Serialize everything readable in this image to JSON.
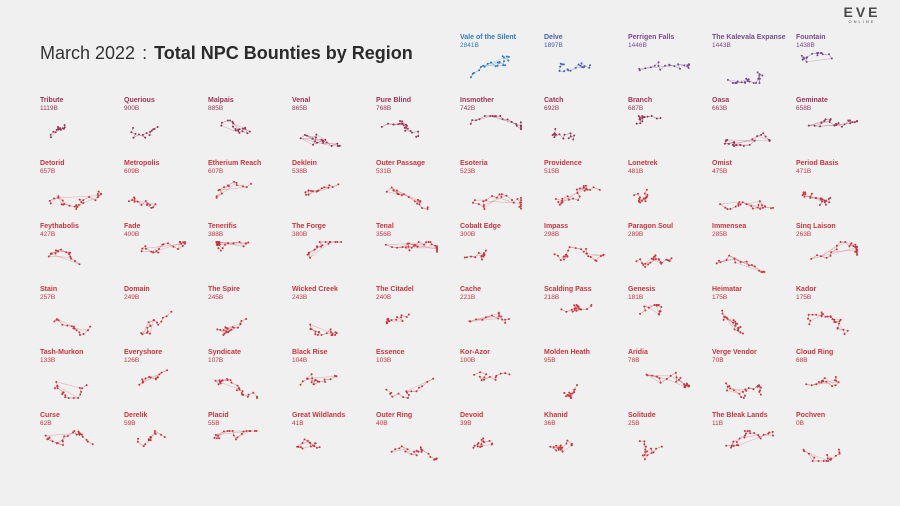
{
  "title": {
    "prefix": "March 2022",
    "separator": ":",
    "main": "Total NPC Bounties by Region"
  },
  "logo": {
    "text": "EVE",
    "sub": "ONLINE"
  },
  "colors": {
    "high": "#2d79c7",
    "mid": "#7a4a92",
    "low": "#c9363f",
    "faint": "#e89aa0"
  },
  "regions": [
    {
      "name": "Vale of the Silent",
      "value": "2841B"
    },
    {
      "name": "Delve",
      "value": "1897B"
    },
    {
      "name": "Perrigen Falls",
      "value": "1446B"
    },
    {
      "name": "The Kalevala Expanse",
      "value": "1443B"
    },
    {
      "name": "Fountain",
      "value": "1438B"
    },
    {
      "name": "Tribute",
      "value": "1119B"
    },
    {
      "name": "Querious",
      "value": "900B"
    },
    {
      "name": "Malpais",
      "value": "885B"
    },
    {
      "name": "Venal",
      "value": "865B"
    },
    {
      "name": "Pure Blind",
      "value": "768B"
    },
    {
      "name": "Insmother",
      "value": "742B"
    },
    {
      "name": "Catch",
      "value": "692B"
    },
    {
      "name": "Branch",
      "value": "687B"
    },
    {
      "name": "Oasa",
      "value": "663B"
    },
    {
      "name": "Geminate",
      "value": "658B"
    },
    {
      "name": "Detorid",
      "value": "657B"
    },
    {
      "name": "Metropolis",
      "value": "609B"
    },
    {
      "name": "Etherium Reach",
      "value": "607B"
    },
    {
      "name": "Deklein",
      "value": "538B"
    },
    {
      "name": "Outer Passage",
      "value": "531B"
    },
    {
      "name": "Esoteria",
      "value": "523B"
    },
    {
      "name": "Providence",
      "value": "515B"
    },
    {
      "name": "Lonetrek",
      "value": "481B"
    },
    {
      "name": "Omist",
      "value": "475B"
    },
    {
      "name": "Period Basis",
      "value": "471B"
    },
    {
      "name": "Feythabolis",
      "value": "427B"
    },
    {
      "name": "Fade",
      "value": "400B"
    },
    {
      "name": "Tenerifis",
      "value": "388B"
    },
    {
      "name": "The Forge",
      "value": "380B"
    },
    {
      "name": "Tenal",
      "value": "356B"
    },
    {
      "name": "Cobalt Edge",
      "value": "300B"
    },
    {
      "name": "Impass",
      "value": "298B"
    },
    {
      "name": "Paragon Soul",
      "value": "289B"
    },
    {
      "name": "Immensea",
      "value": "285B"
    },
    {
      "name": "Sinq Laison",
      "value": "263B"
    },
    {
      "name": "Stain",
      "value": "257B"
    },
    {
      "name": "Domain",
      "value": "249B"
    },
    {
      "name": "The Spire",
      "value": "245B"
    },
    {
      "name": "Wicked Creek",
      "value": "243B"
    },
    {
      "name": "The Citadel",
      "value": "240B"
    },
    {
      "name": "Cache",
      "value": "221B"
    },
    {
      "name": "Scalding Pass",
      "value": "218B"
    },
    {
      "name": "Genesis",
      "value": "181B"
    },
    {
      "name": "Heimatar",
      "value": "175B"
    },
    {
      "name": "Kador",
      "value": "175B"
    },
    {
      "name": "Tash-Murkon",
      "value": "133B"
    },
    {
      "name": "Everyshore",
      "value": "126B"
    },
    {
      "name": "Syndicate",
      "value": "107B"
    },
    {
      "name": "Black Rise",
      "value": "104B"
    },
    {
      "name": "Essence",
      "value": "103B"
    },
    {
      "name": "Kor-Azor",
      "value": "100B"
    },
    {
      "name": "Molden Heath",
      "value": "95B"
    },
    {
      "name": "Aridia",
      "value": "78B"
    },
    {
      "name": "Verge Vendor",
      "value": "70B"
    },
    {
      "name": "Cloud Ring",
      "value": "68B"
    },
    {
      "name": "Curse",
      "value": "62B"
    },
    {
      "name": "Derelik",
      "value": "59B"
    },
    {
      "name": "Placid",
      "value": "55B"
    },
    {
      "name": "Great Wildlands",
      "value": "41B"
    },
    {
      "name": "Outer Ring",
      "value": "40B"
    },
    {
      "name": "Devoid",
      "value": "39B"
    },
    {
      "name": "Khanid",
      "value": "36B"
    },
    {
      "name": "Solitude",
      "value": "25B"
    },
    {
      "name": "The Bleak Lands",
      "value": "11B"
    },
    {
      "name": "Pochven",
      "value": "0B"
    }
  ]
}
